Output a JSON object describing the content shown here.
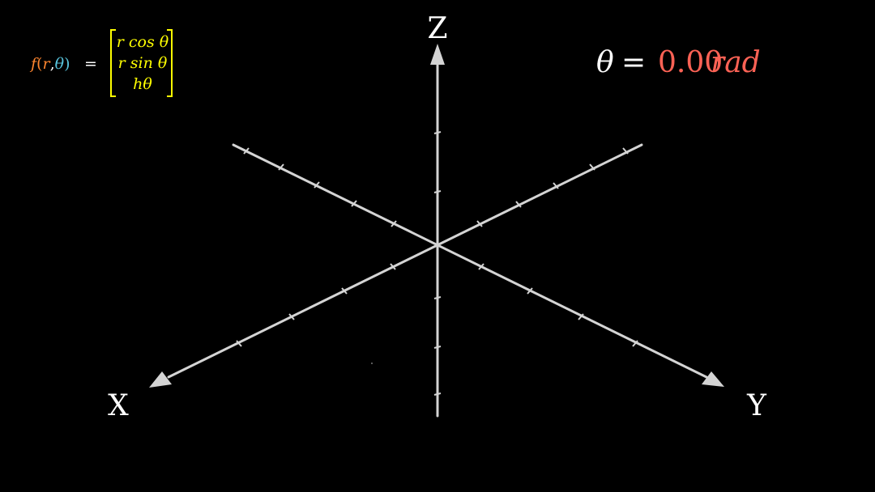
{
  "axes": {
    "x_label": "X",
    "y_label": "Y",
    "z_label": "Z",
    "colors": {
      "axis": "#d4d4d4",
      "label": "#ffffff"
    }
  },
  "angle_readout": {
    "symbol": "θ",
    "equals": "=",
    "value": "0.00",
    "unit": "rad",
    "value_color": "#fc6255"
  },
  "formula": {
    "func": "f",
    "open_paren": "(",
    "arg_r": "r",
    "comma": ",",
    "arg_theta": "θ",
    "close_paren": ")",
    "equals": "=",
    "row1": "r cos θ",
    "row2": "r sin θ",
    "row3": "hθ",
    "colors": {
      "func": "#ff862f",
      "r": "#ff862f",
      "theta": "#58c4dd",
      "matrix": "#ffff00",
      "equals": "#ffffff"
    }
  }
}
